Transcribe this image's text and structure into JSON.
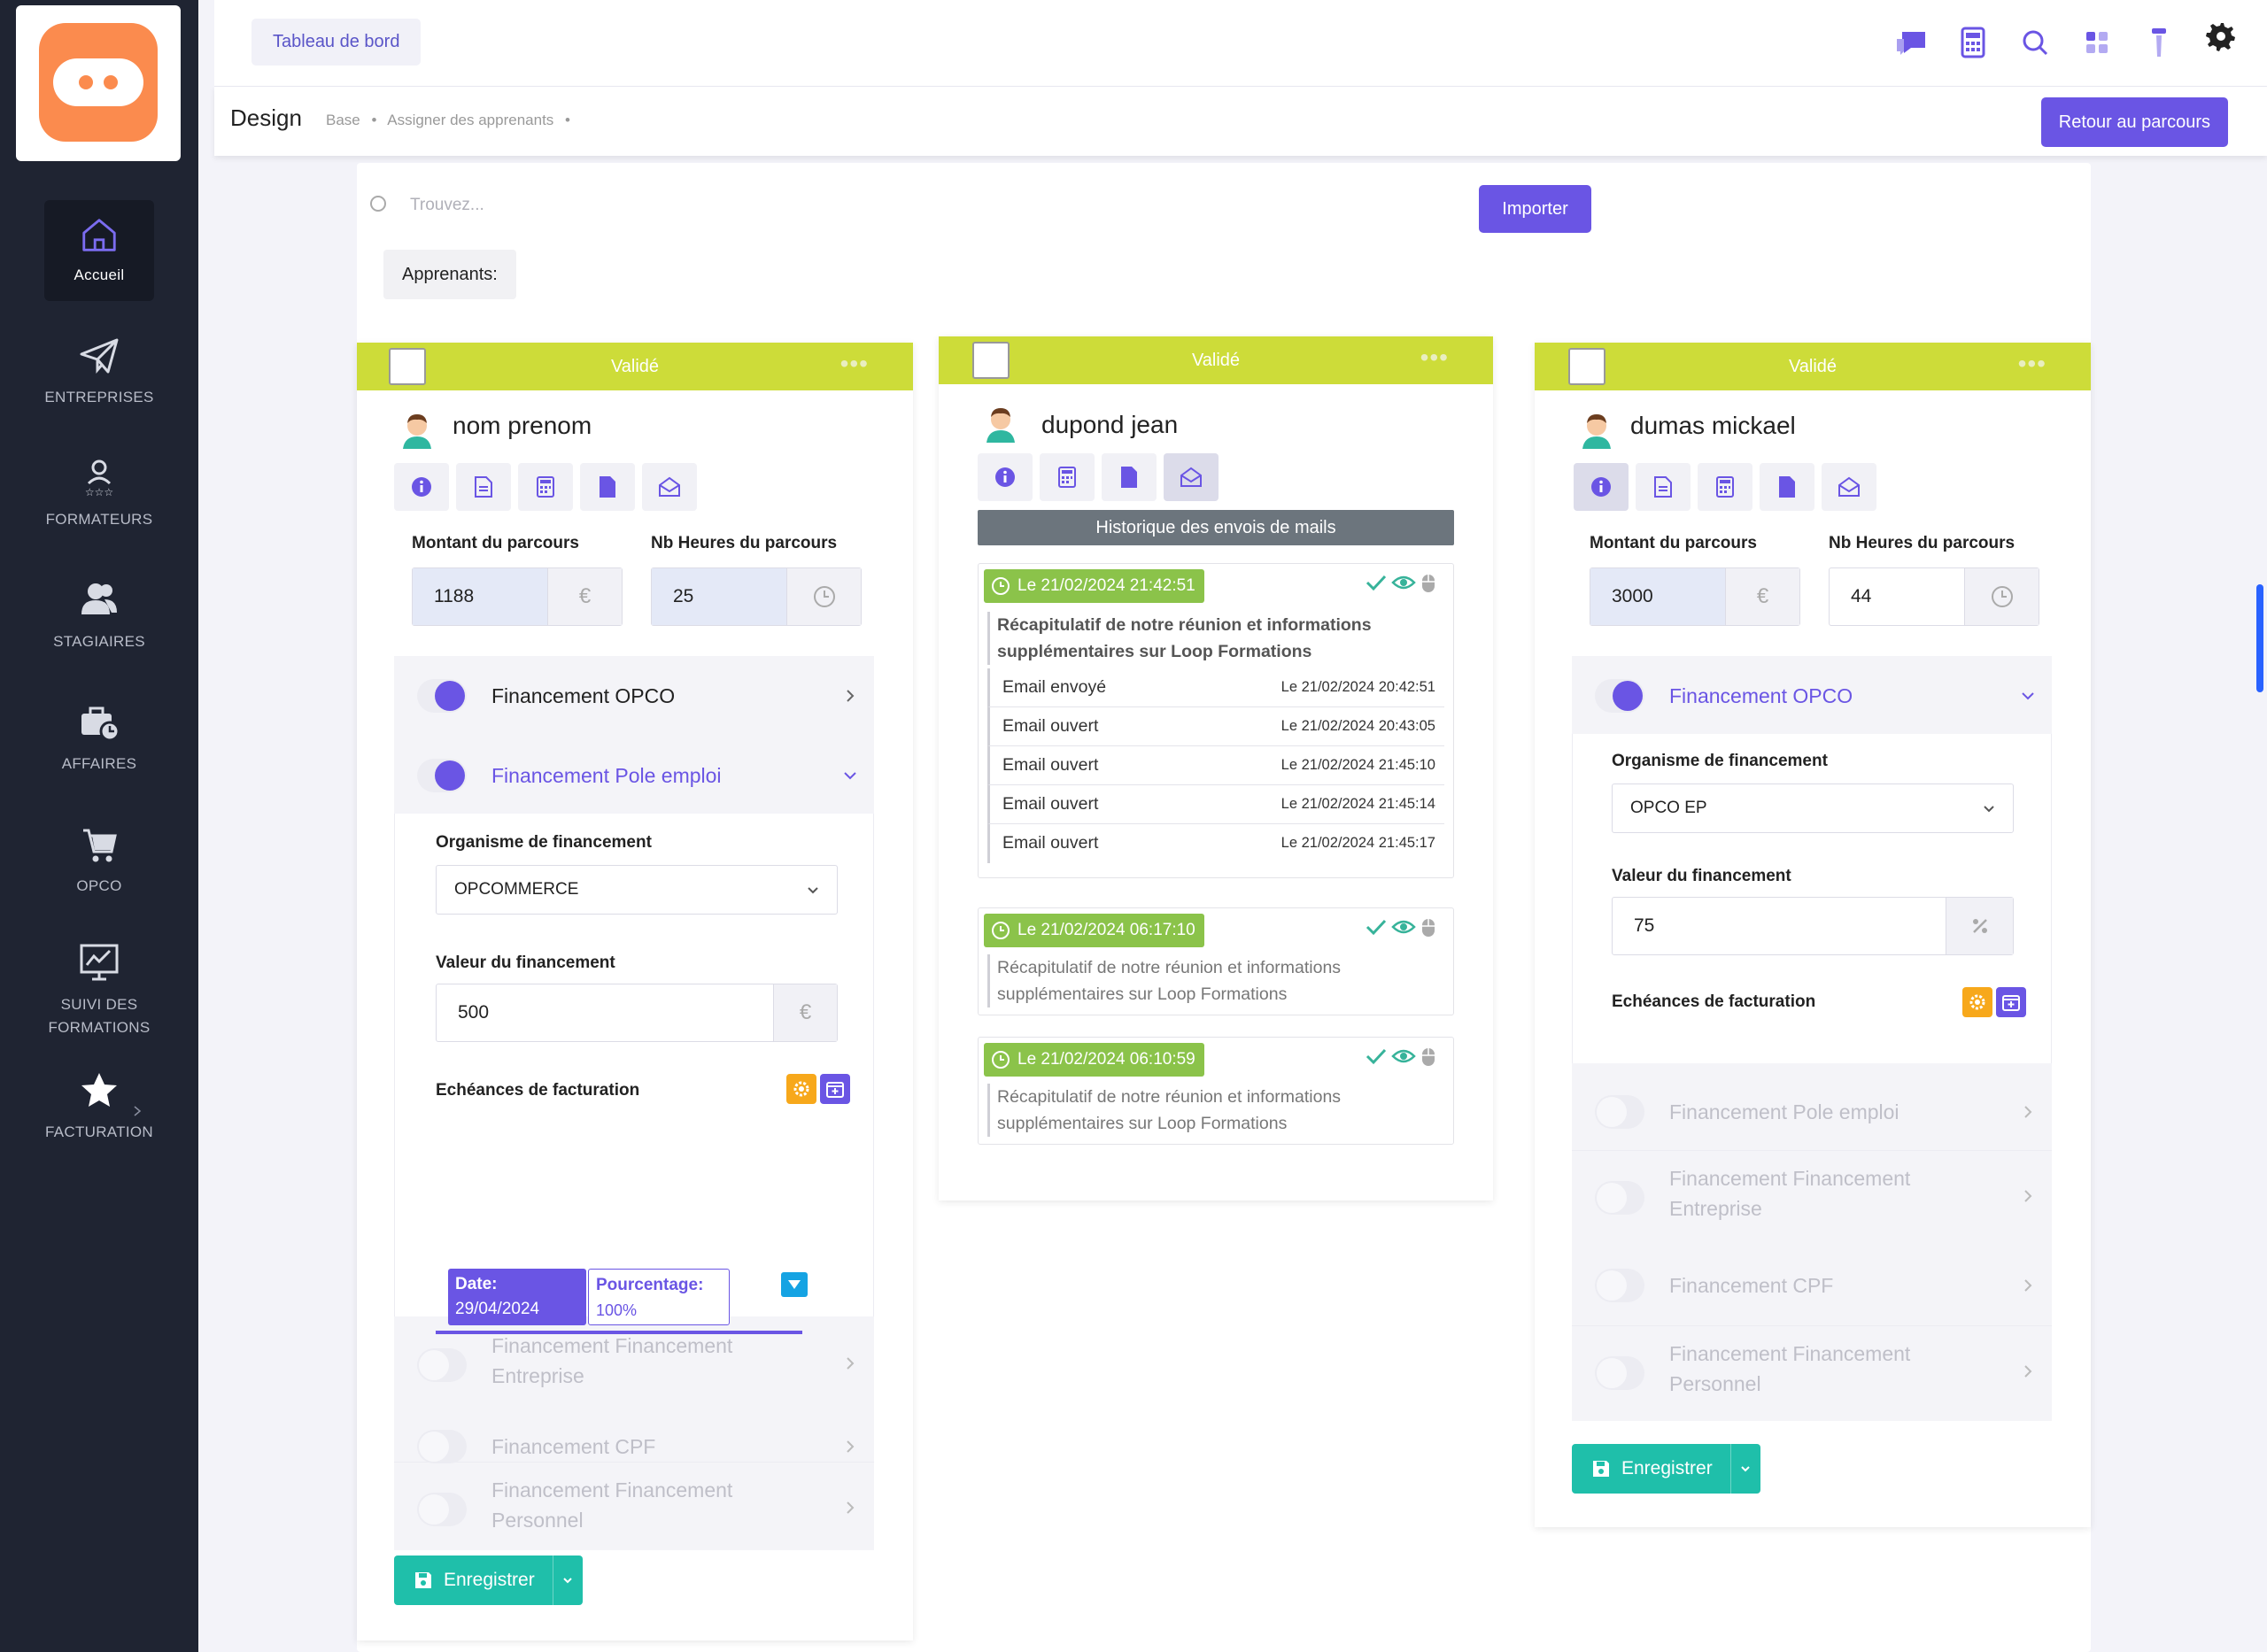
{
  "sidebar": {
    "items": [
      {
        "label": "Accueil",
        "icon": "home-icon"
      },
      {
        "label": "ENTREPRISES",
        "icon": "paper-plane-icon"
      },
      {
        "label": "FORMATEURS",
        "icon": "trainer-icon"
      },
      {
        "label": "STAGIAIRES",
        "icon": "users-icon"
      },
      {
        "label": "AFFAIRES",
        "icon": "briefcase-clock-icon"
      },
      {
        "label": "OPCO",
        "icon": "cart-icon"
      },
      {
        "label": "SUIVI DES",
        "label2": "FORMATIONS",
        "icon": "chart-monitor-icon"
      },
      {
        "label": "FACTURATION",
        "icon": "star-icon"
      }
    ]
  },
  "topbar": {
    "dashboard_label": "Tableau de bord"
  },
  "subbar": {
    "title": "Design",
    "breadcrumb": [
      "Base",
      "•",
      "Assigner des apprenants",
      "•"
    ],
    "back_label": "Retour au parcours"
  },
  "main": {
    "search_placeholder": "Trouvez...",
    "import_label": "Importer",
    "learners_label": "Apprenants:"
  },
  "labels": {
    "status": "Validé",
    "dots": "•••",
    "amount": "Montant du parcours",
    "hours": "Nb Heures du parcours",
    "organisme": "Organisme de financement",
    "valeur": "Valeur du financement",
    "echeances": "Echéances de facturation",
    "save": "Enregistrer",
    "history": "Historique des envois de mails"
  },
  "card1": {
    "name": "nom prenom",
    "amount": "1188",
    "hours": "25",
    "opco": "Financement OPCO",
    "pole": "Financement Pole emploi",
    "organisme": "OPCOMMERCE",
    "valeur": "500",
    "ech_date_label": "Date:",
    "ech_date": "29/04/2024",
    "ech_pct_label": "Pourcentage:",
    "ech_pct": "100%",
    "entreprise": "Financement Financement",
    "entreprise2": "Entreprise",
    "cpf": "Financement CPF",
    "personnel": "Financement Financement",
    "personnel2": "Personnel"
  },
  "card2": {
    "name": "dupond jean",
    "mails": [
      {
        "date": "Le 21/02/2024 21:42:51",
        "subject1": "Récapitulatif de notre réunion et informations",
        "subject2": "supplémentaires sur Loop Formations",
        "events": [
          {
            "label": "Email envoyé",
            "date": "Le 21/02/2024 20:42:51"
          },
          {
            "label": "Email ouvert",
            "date": "Le 21/02/2024 20:43:05"
          },
          {
            "label": "Email ouvert",
            "date": "Le 21/02/2024 21:45:10"
          },
          {
            "label": "Email ouvert",
            "date": "Le 21/02/2024 21:45:14"
          },
          {
            "label": "Email ouvert",
            "date": "Le 21/02/2024 21:45:17"
          }
        ]
      },
      {
        "date": "Le 21/02/2024 06:17:10",
        "subject1": "Récapitulatif de notre réunion et informations",
        "subject2": "supplémentaires sur Loop Formations"
      },
      {
        "date": "Le 21/02/2024 06:10:59",
        "subject1": "Récapitulatif de notre réunion et informations",
        "subject2": "supplémentaires sur Loop Formations"
      }
    ]
  },
  "card3": {
    "name": "dumas mickael",
    "amount": "3000",
    "hours": "44",
    "opco": "Financement OPCO",
    "organisme": "OPCO EP",
    "valeur": "75",
    "pole": "Financement Pole emploi",
    "entreprise": "Financement Financement",
    "entreprise2": "Entreprise",
    "cpf": "Financement CPF",
    "personnel": "Financement Financement",
    "personnel2": "Personnel"
  },
  "colors": {
    "accent": "#6a55e4",
    "validated": "#cddc39",
    "save": "#1fbfaa",
    "mail_date": "#8bc34a",
    "logo": "#fb8b4e",
    "sidebar": "#1f2432"
  }
}
